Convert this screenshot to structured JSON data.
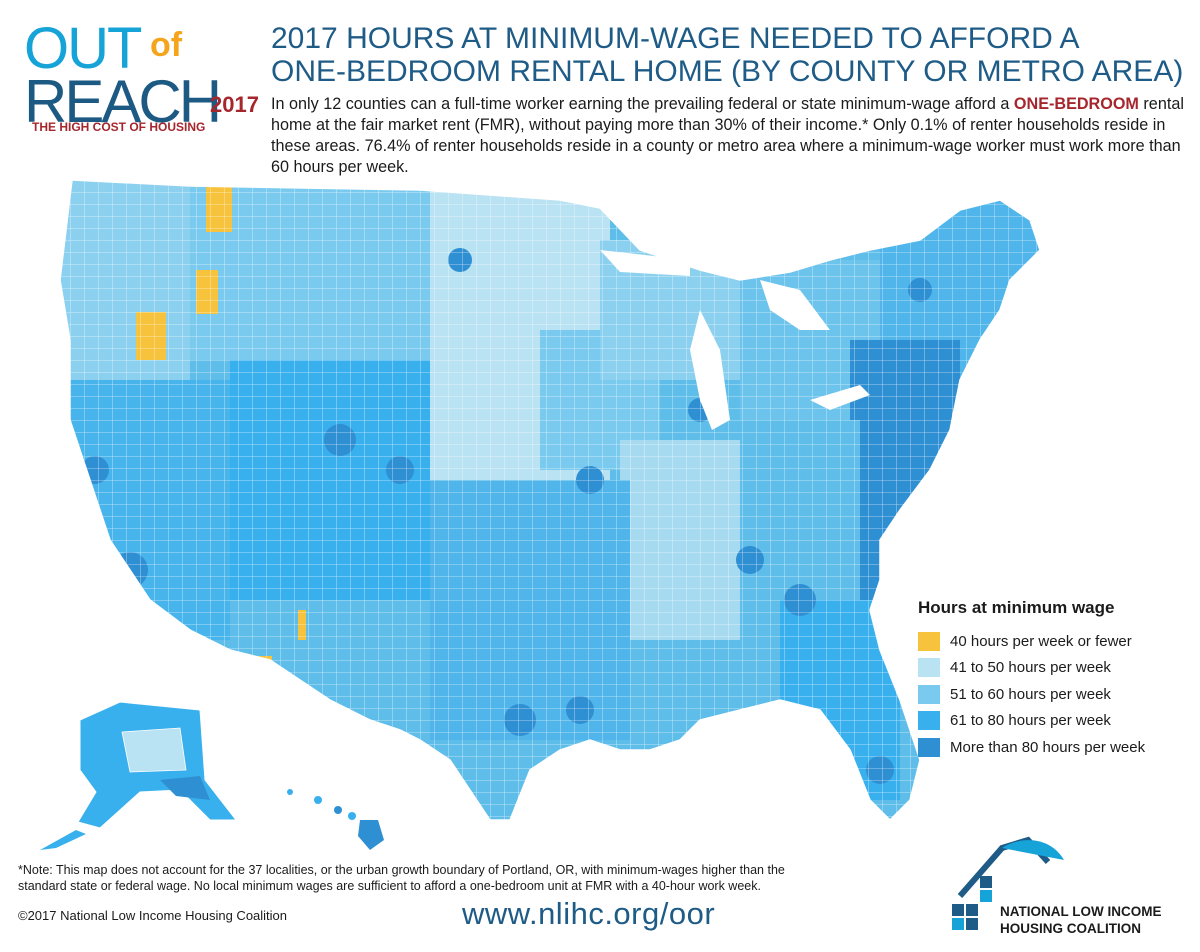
{
  "logo": {
    "out": "OUT",
    "of": "of",
    "reach": "REACH",
    "year": "2017",
    "tagline": "THE HIGH COST OF HOUSING"
  },
  "title": {
    "line1": "2017 HOURS AT MINIMUM-WAGE NEEDED TO AFFORD A",
    "line2": "ONE-BEDROOM RENTAL HOME (BY COUNTY OR METRO AREA)"
  },
  "intro": {
    "part1": "In only 12 counties can a full-time worker earning the prevailing federal or state minimum-wage afford a",
    "highlight": "ONE-BEDROOM",
    "part2": "rental home at the fair market rent (FMR), without paying more than 30% of their income.* Only 0.1% of renter households reside in these areas. 76.4% of renter households reside in a county or metro area where a minimum-wage worker must work more than 60 hours per week."
  },
  "legend": {
    "title": "Hours at minimum wage",
    "items": [
      {
        "label": "40 hours per week or fewer",
        "color": "#f7c23c"
      },
      {
        "label": "41 to 50 hours per week",
        "color": "#b9e2f3"
      },
      {
        "label": "51 to 60 hours per week",
        "color": "#79caee"
      },
      {
        "label": "61 to 80 hours per week",
        "color": "#39b0ee"
      },
      {
        "label": "More than 80 hours per week",
        "color": "#2f8fd3"
      }
    ]
  },
  "note": {
    "line1": "*Note: This map does not account for the 37 localities, or the urban growth boundary of Portland, OR, with minimum-wages higher than the",
    "line2": "standard state or federal wage. No local minimum wages are sufficient to afford a one-bedroom unit at FMR with a 40-hour work week."
  },
  "footer": {
    "copyright": "©2017 National Low Income Housing Coalition",
    "url": "www.nlihc.org/oor",
    "org_line1": "NATIONAL LOW INCOME",
    "org_line2": "HOUSING COALITION"
  },
  "colors": {
    "brand_blue": "#1e5b86",
    "brand_red": "#a5262d",
    "accent_yellow": "#f4a51c",
    "accent_cyan": "#16a3d8"
  }
}
